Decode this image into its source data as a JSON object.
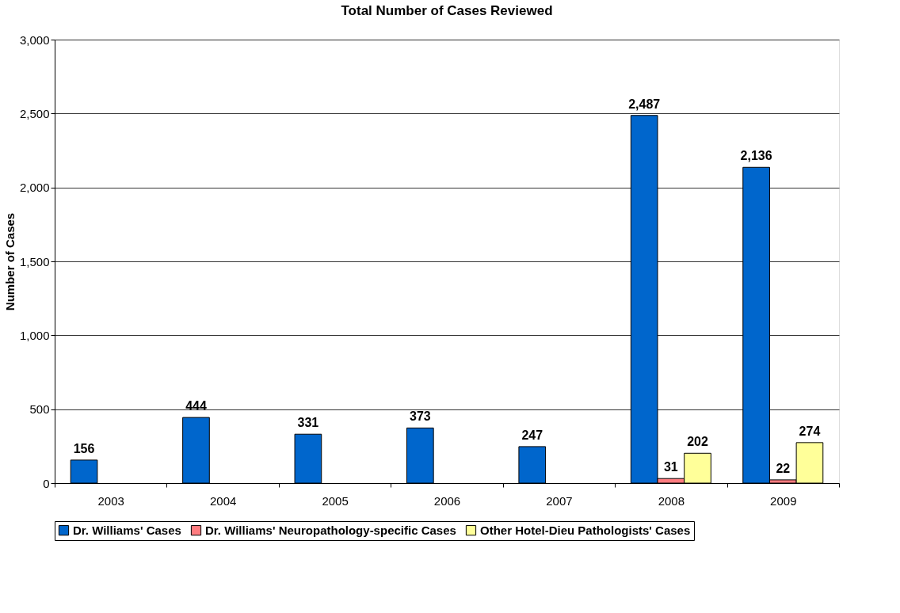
{
  "chart_data": {
    "type": "bar",
    "title": "Total Number of Cases Reviewed",
    "ylabel": "Number of Cases",
    "categories": [
      "2003",
      "2004",
      "2005",
      "2006",
      "2007",
      "2008",
      "2009"
    ],
    "series": [
      {
        "name": "Dr. Williams' Cases",
        "color": "#0066cc",
        "values": [
          156,
          444,
          331,
          373,
          247,
          2487,
          2136
        ],
        "value_labels": [
          "156",
          "444",
          "331",
          "373",
          "247",
          "2,487",
          "2,136"
        ]
      },
      {
        "name": "Dr. Williams' Neuropathology-specific Cases",
        "color": "#ff7c80",
        "values": [
          null,
          null,
          null,
          null,
          null,
          31,
          22
        ],
        "value_labels": [
          null,
          null,
          null,
          null,
          null,
          "31",
          "22"
        ]
      },
      {
        "name": "Other Hotel-Dieu Pathologists' Cases",
        "color": "#ffff99",
        "values": [
          null,
          null,
          null,
          null,
          null,
          202,
          274
        ],
        "value_labels": [
          null,
          null,
          null,
          null,
          null,
          "202",
          "274"
        ]
      }
    ],
    "ylim": [
      0,
      3000
    ],
    "yticks": [
      0,
      {
        "value": 500,
        "label": "500"
      },
      {
        "value": 1000,
        "label": "1,000"
      },
      {
        "value": 1500,
        "label": "1,500"
      },
      {
        "value": 2000,
        "label": "2,000"
      },
      {
        "value": 2500,
        "label": "2,500"
      },
      {
        "value": 3000,
        "label": "3,000"
      }
    ],
    "grid": "y",
    "legend": "bottom"
  }
}
